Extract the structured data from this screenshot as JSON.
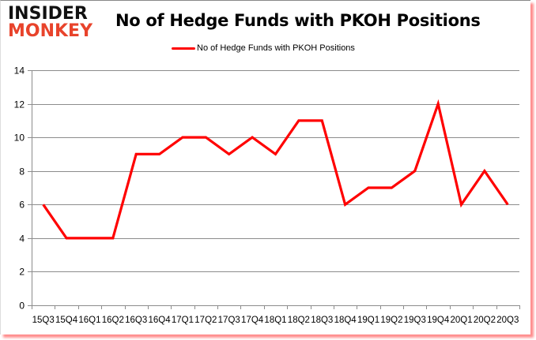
{
  "logo": {
    "line1": "INSIDER",
    "line2": "MONKEY"
  },
  "chart_data": {
    "type": "line",
    "title": "No of Hedge Funds with PKOH Positions",
    "categories": [
      "15Q3",
      "15Q4",
      "16Q1",
      "16Q2",
      "16Q3",
      "16Q4",
      "17Q1",
      "17Q2",
      "17Q3",
      "17Q4",
      "18Q1",
      "18Q2",
      "18Q3",
      "18Q4",
      "19Q1",
      "19Q2",
      "19Q3",
      "19Q4",
      "20Q1",
      "20Q2",
      "20Q3"
    ],
    "series": [
      {
        "name": "No of Hedge Funds with PKOH Positions",
        "color": "#ff0000",
        "values": [
          6,
          4,
          4,
          4,
          9,
          9,
          10,
          10,
          9,
          10,
          9,
          11,
          11,
          6,
          7,
          7,
          8,
          12,
          6,
          8,
          6
        ]
      }
    ],
    "xlabel": "",
    "ylabel": "",
    "ylim": [
      0,
      14
    ],
    "yticks": [
      0,
      2,
      4,
      6,
      8,
      10,
      12,
      14
    ],
    "grid": true,
    "legend_position": "top"
  }
}
